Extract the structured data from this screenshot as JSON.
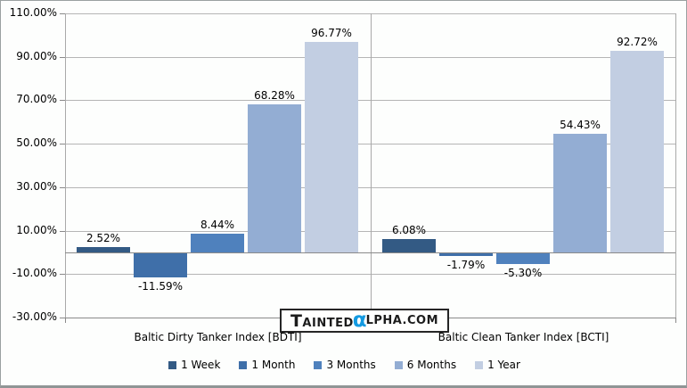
{
  "watermark": {
    "prefix": "Tainted",
    "alpha": "α",
    "suffix": "lpha.com",
    "alpha_color": "#149ae1"
  },
  "chart_data": {
    "type": "bar",
    "title": "",
    "categories": [
      "Baltic Dirty Tanker Index [BDTI]",
      "Baltic Clean Tanker Index [BCTI]"
    ],
    "series": [
      {
        "name": "1 Week",
        "color": "#335a84",
        "values": [
          2.52,
          6.08
        ],
        "labels": [
          "2.52%",
          "6.08%"
        ]
      },
      {
        "name": "1 Month",
        "color": "#3f6fa9",
        "values": [
          -11.59,
          -1.79
        ],
        "labels": [
          "-11.59%",
          "-1.79%"
        ]
      },
      {
        "name": "3 Months",
        "color": "#4f81bd",
        "values": [
          8.44,
          -5.3
        ],
        "labels": [
          "8.44%",
          "-5.30%"
        ]
      },
      {
        "name": "6 Months",
        "color": "#93add3",
        "values": [
          68.28,
          54.43
        ],
        "labels": [
          "68.28%",
          "54.43%"
        ]
      },
      {
        "name": "1 Year",
        "color": "#c2cee2",
        "values": [
          96.77,
          92.72
        ],
        "labels": [
          "96.77%",
          "92.72%"
        ]
      }
    ],
    "y_axis": {
      "tick_labels": [
        "110.00%",
        "90.00%",
        "70.00%",
        "50.00%",
        "30.00%",
        "10.00%",
        "-10.00%",
        "-30.00%"
      ],
      "tick_values": [
        110,
        90,
        70,
        50,
        30,
        10,
        -10,
        -30
      ]
    },
    "ylim": [
      -30,
      110
    ],
    "grid": true,
    "legend_position": "bottom"
  }
}
